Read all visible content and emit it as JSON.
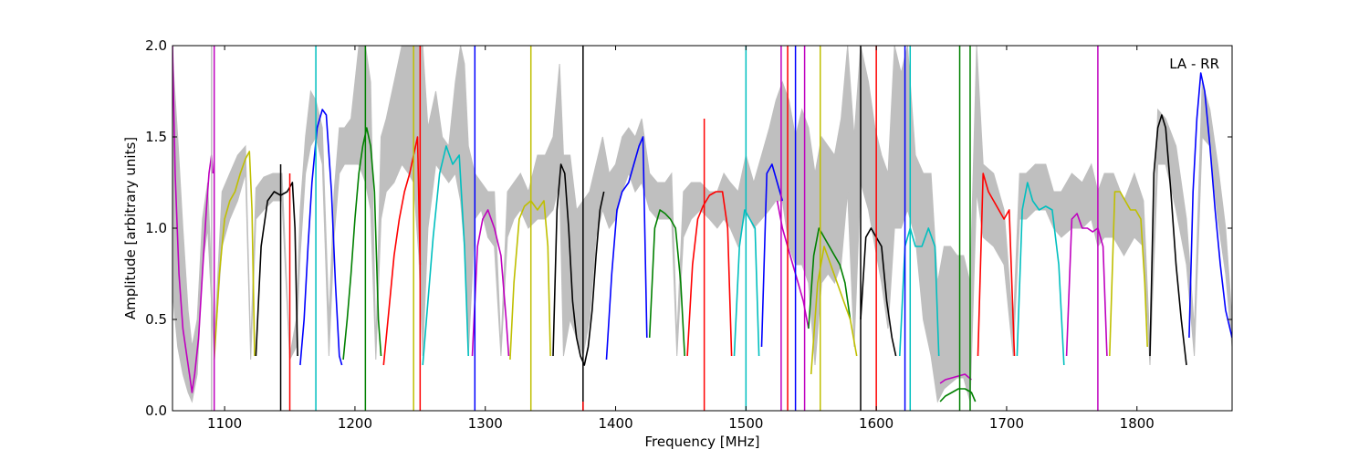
{
  "chart_data": {
    "type": "line",
    "title": "",
    "annotation": "LA - RR",
    "xlabel": "Frequency [MHz]",
    "ylabel": "Amplitude [arbitrary units]",
    "xlim": [
      1060,
      1873
    ],
    "ylim": [
      0.0,
      2.0
    ],
    "xticks": [
      1100,
      1200,
      1300,
      1400,
      1500,
      1600,
      1700,
      1800
    ],
    "xtick_labels": [
      "1100",
      "1200",
      "1300",
      "1400",
      "1500",
      "1600",
      "1700",
      "1800"
    ],
    "yticks": [
      0.0,
      0.5,
      1.0,
      1.5,
      2.0
    ],
    "ytick_labels": [
      "0.0",
      "0.5",
      "1.0",
      "1.5",
      "2.0"
    ],
    "grid": false,
    "legend": "none",
    "envelope_color": "#bfbfbf",
    "envelope": {
      "x": [
        1060,
        1064,
        1068,
        1072,
        1075,
        1079,
        1083,
        1087,
        1092,
        1098,
        1104,
        1110,
        1116,
        1120,
        1124,
        1130,
        1137,
        1144,
        1150,
        1155,
        1158,
        1162,
        1166,
        1170,
        1175,
        1180,
        1184,
        1188,
        1192,
        1197,
        1203,
        1208,
        1212,
        1216,
        1220,
        1224,
        1230,
        1236,
        1241,
        1245,
        1249,
        1252,
        1256,
        1262,
        1267,
        1272,
        1277,
        1281,
        1284,
        1287,
        1292,
        1297,
        1302,
        1307,
        1312,
        1317,
        1322,
        1327,
        1333,
        1340,
        1346,
        1352,
        1357,
        1360,
        1365,
        1370,
        1375,
        1380,
        1385,
        1390,
        1395,
        1400,
        1405,
        1410,
        1415,
        1420,
        1426,
        1432,
        1438,
        1443,
        1447,
        1452,
        1458,
        1465,
        1472,
        1478,
        1483,
        1488,
        1494,
        1500,
        1506,
        1512,
        1518,
        1523,
        1528,
        1533,
        1538,
        1543,
        1548,
        1553,
        1558,
        1563,
        1568,
        1573,
        1578,
        1583,
        1588,
        1594,
        1599,
        1604,
        1609,
        1614,
        1619,
        1624,
        1630,
        1636,
        1642,
        1647,
        1652,
        1657,
        1662,
        1667,
        1672,
        1677,
        1682,
        1690,
        1698,
        1705,
        1710,
        1715,
        1722,
        1730,
        1736,
        1742,
        1750,
        1758,
        1765,
        1770,
        1775,
        1782,
        1790,
        1798,
        1805,
        1810,
        1816,
        1822,
        1830,
        1838,
        1844,
        1850,
        1856,
        1862,
        1868,
        1873
      ],
      "upper": [
        1.95,
        1.5,
        1.0,
        0.55,
        0.35,
        0.5,
        1.05,
        1.25,
        0.35,
        1.2,
        1.3,
        1.4,
        1.45,
        0.35,
        1.22,
        1.28,
        1.3,
        1.3,
        0.3,
        0.5,
        1.1,
        1.5,
        1.75,
        1.7,
        1.55,
        0.5,
        1.2,
        1.55,
        1.55,
        1.6,
        2.0,
        2.0,
        1.8,
        0.35,
        1.5,
        1.6,
        1.8,
        2.0,
        2.0,
        2.0,
        2.0,
        2.0,
        1.55,
        1.75,
        1.5,
        1.45,
        1.8,
        2.0,
        1.9,
        1.45,
        1.3,
        1.25,
        1.2,
        1.2,
        0.35,
        1.2,
        1.25,
        1.3,
        1.2,
        1.4,
        1.4,
        1.5,
        1.9,
        1.4,
        1.4,
        1.1,
        1.15,
        1.2,
        1.35,
        1.5,
        1.3,
        1.35,
        1.5,
        1.55,
        1.5,
        1.6,
        1.3,
        1.25,
        1.25,
        1.3,
        0.4,
        1.2,
        1.25,
        1.25,
        1.2,
        1.2,
        1.3,
        1.25,
        1.2,
        1.4,
        1.25,
        1.4,
        1.55,
        1.7,
        1.8,
        1.7,
        1.5,
        1.65,
        1.55,
        1.3,
        1.5,
        1.45,
        1.4,
        1.6,
        2.0,
        1.5,
        2.0,
        1.8,
        1.55,
        1.4,
        1.3,
        2.0,
        1.85,
        2.0,
        1.4,
        1.3,
        1.3,
        0.7,
        0.9,
        0.9,
        0.85,
        0.85,
        0.7,
        2.0,
        1.35,
        1.3,
        1.1,
        0.45,
        1.3,
        1.3,
        1.35,
        1.35,
        1.2,
        1.2,
        1.3,
        1.25,
        1.35,
        1.2,
        1.3,
        1.3,
        1.15,
        1.3,
        1.15,
        0.35,
        1.65,
        1.6,
        1.45,
        1.05,
        0.45,
        1.8,
        1.65,
        1.35,
        1.0,
        0.5
      ],
      "lower": [
        0.65,
        0.35,
        0.2,
        0.1,
        0.05,
        0.2,
        0.8,
        1.0,
        0.3,
        0.9,
        1.05,
        1.15,
        1.3,
        0.28,
        1.05,
        1.1,
        1.15,
        1.15,
        0.28,
        0.35,
        0.85,
        1.3,
        1.45,
        1.5,
        1.35,
        0.3,
        0.95,
        1.3,
        1.35,
        1.35,
        1.35,
        1.25,
        1.1,
        0.28,
        1.05,
        1.2,
        1.25,
        1.35,
        1.3,
        1.25,
        0.85,
        0.3,
        1.0,
        1.35,
        1.3,
        1.25,
        1.3,
        1.15,
        0.9,
        0.3,
        1.05,
        1.1,
        0.95,
        0.9,
        0.3,
        0.95,
        1.05,
        1.1,
        1.0,
        1.05,
        1.05,
        1.1,
        1.25,
        0.3,
        0.5,
        0.4,
        0.3,
        0.5,
        0.95,
        1.1,
        1.0,
        1.05,
        1.2,
        1.3,
        1.2,
        1.25,
        1.1,
        1.05,
        1.05,
        1.05,
        0.3,
        0.95,
        1.05,
        1.1,
        1.05,
        1.0,
        1.05,
        1.0,
        0.9,
        1.1,
        1.0,
        1.05,
        1.1,
        1.15,
        1.15,
        0.9,
        0.8,
        0.8,
        0.7,
        0.25,
        0.7,
        0.75,
        0.7,
        0.8,
        1.2,
        0.35,
        1.25,
        1.1,
        0.9,
        0.7,
        0.45,
        1.0,
        1.0,
        1.1,
        0.95,
        0.5,
        0.3,
        0.05,
        0.12,
        0.15,
        0.18,
        0.18,
        0.05,
        1.2,
        0.95,
        0.9,
        0.8,
        0.3,
        1.05,
        1.05,
        1.1,
        1.1,
        1.0,
        0.95,
        1.0,
        1.0,
        1.05,
        0.9,
        0.95,
        0.95,
        0.85,
        0.95,
        0.9,
        0.25,
        1.35,
        1.35,
        1.1,
        0.8,
        0.3,
        1.5,
        1.45,
        1.05,
        0.75,
        0.35
      ]
    },
    "series": [
      {
        "color": "#bf00bf",
        "x": [
          1060,
          1062,
          1065,
          1068,
          1071,
          1073,
          1075,
          1077,
          1080,
          1083,
          1086,
          1088,
          1090,
          1091
        ],
        "y": [
          2.0,
          1.3,
          0.75,
          0.45,
          0.3,
          0.2,
          0.1,
          0.2,
          0.4,
          0.75,
          1.1,
          1.3,
          1.4,
          1.3
        ]
      },
      {
        "color": "#bfbf00",
        "x": [
          1092,
          1096,
          1100,
          1104,
          1108,
          1112,
          1116,
          1119,
          1121,
          1123
        ],
        "y": [
          0.28,
          0.75,
          1.05,
          1.15,
          1.2,
          1.3,
          1.38,
          1.42,
          1.1,
          0.3
        ]
      },
      {
        "color": "#000000",
        "x": [
          1124,
          1128,
          1133,
          1138,
          1143,
          1148,
          1152,
          1154,
          1156
        ],
        "y": [
          0.3,
          0.9,
          1.15,
          1.2,
          1.18,
          1.2,
          1.25,
          1.0,
          0.3
        ]
      },
      {
        "color": "#0000ff",
        "x": [
          1158,
          1161,
          1164,
          1167,
          1171,
          1175,
          1178,
          1182,
          1185,
          1188,
          1190
        ],
        "y": [
          0.25,
          0.5,
          0.9,
          1.25,
          1.55,
          1.65,
          1.62,
          1.2,
          0.7,
          0.3,
          0.25
        ]
      },
      {
        "color": "#008000",
        "x": [
          1191,
          1194,
          1197,
          1200,
          1203,
          1206,
          1209,
          1212,
          1215,
          1218,
          1220
        ],
        "y": [
          0.28,
          0.5,
          0.75,
          1.05,
          1.3,
          1.45,
          1.55,
          1.45,
          1.2,
          0.5,
          0.3
        ]
      },
      {
        "color": "#ff0000",
        "x": [
          1222,
          1226,
          1230,
          1234,
          1238,
          1242,
          1245,
          1248,
          1250
        ],
        "y": [
          0.25,
          0.55,
          0.85,
          1.05,
          1.2,
          1.3,
          1.4,
          1.5,
          0.8
        ]
      },
      {
        "color": "#00bfbf",
        "x": [
          1252,
          1256,
          1260,
          1265,
          1270,
          1275,
          1280,
          1284,
          1287
        ],
        "y": [
          0.25,
          0.6,
          0.95,
          1.3,
          1.45,
          1.35,
          1.4,
          0.9,
          0.3
        ]
      },
      {
        "color": "#bf00bf",
        "x": [
          1290,
          1294,
          1298,
          1302,
          1307,
          1312,
          1316,
          1318
        ],
        "y": [
          0.3,
          0.9,
          1.05,
          1.1,
          1.0,
          0.85,
          0.5,
          0.3
        ]
      },
      {
        "color": "#bfbf00",
        "x": [
          1319,
          1322,
          1326,
          1330,
          1335,
          1340,
          1345,
          1348,
          1350
        ],
        "y": [
          0.28,
          0.7,
          1.05,
          1.12,
          1.15,
          1.1,
          1.15,
          0.9,
          0.3
        ]
      },
      {
        "color": "#000000",
        "x": [
          1352,
          1355,
          1358,
          1361,
          1364,
          1367,
          1370,
          1373,
          1376,
          1379,
          1382,
          1385,
          1388,
          1391
        ],
        "y": [
          0.3,
          1.1,
          1.35,
          1.3,
          1.0,
          0.6,
          0.4,
          0.3,
          0.25,
          0.35,
          0.55,
          0.85,
          1.1,
          1.2
        ]
      },
      {
        "color": "#0000ff",
        "x": [
          1393,
          1397,
          1401,
          1405,
          1410,
          1414,
          1418,
          1421,
          1424
        ],
        "y": [
          0.28,
          0.75,
          1.1,
          1.2,
          1.25,
          1.35,
          1.45,
          1.5,
          0.4
        ]
      },
      {
        "color": "#008000",
        "x": [
          1426,
          1430,
          1434,
          1438,
          1442,
          1446,
          1450,
          1453
        ],
        "y": [
          0.4,
          1.0,
          1.1,
          1.08,
          1.05,
          1.0,
          0.7,
          0.3
        ]
      },
      {
        "color": "#ff0000",
        "x": [
          1455,
          1459,
          1463,
          1467,
          1472,
          1477,
          1482,
          1486,
          1489
        ],
        "y": [
          0.3,
          0.8,
          1.05,
          1.12,
          1.18,
          1.2,
          1.2,
          1.0,
          0.3
        ]
      },
      {
        "color": "#00bfbf",
        "x": [
          1491,
          1495,
          1499,
          1503,
          1507,
          1510
        ],
        "y": [
          0.3,
          0.9,
          1.1,
          1.05,
          1.0,
          0.3
        ]
      },
      {
        "color": "#0000ff",
        "x": [
          1512,
          1516,
          1520,
          1524,
          1528
        ],
        "y": [
          0.35,
          1.3,
          1.35,
          1.25,
          1.15
        ]
      },
      {
        "color": "#bf00bf",
        "x": [
          1524,
          1528,
          1532,
          1536,
          1540,
          1544,
          1548
        ],
        "y": [
          1.15,
          1.0,
          0.9,
          0.8,
          0.7,
          0.6,
          0.45
        ]
      },
      {
        "color": "#008000",
        "x": [
          1548,
          1552,
          1556,
          1560,
          1564,
          1568,
          1572,
          1576,
          1580
        ],
        "y": [
          0.45,
          0.85,
          1.0,
          0.95,
          0.9,
          0.85,
          0.8,
          0.7,
          0.5
        ]
      },
      {
        "color": "#bfbf00",
        "x": [
          1550,
          1555,
          1560,
          1565,
          1570,
          1575,
          1580,
          1585
        ],
        "y": [
          0.2,
          0.7,
          0.9,
          0.8,
          0.7,
          0.6,
          0.5,
          0.3
        ]
      },
      {
        "color": "#000000",
        "x": [
          1588,
          1592,
          1596,
          1600,
          1604,
          1608,
          1612,
          1615
        ],
        "y": [
          0.5,
          0.95,
          1.0,
          0.95,
          0.9,
          0.6,
          0.4,
          0.3
        ]
      },
      {
        "color": "#00bfbf",
        "x": [
          1618,
          1622,
          1626,
          1630,
          1635,
          1640,
          1645,
          1648
        ],
        "y": [
          0.3,
          0.9,
          1.0,
          0.9,
          0.9,
          1.0,
          0.9,
          0.3
        ]
      },
      {
        "color": "#bf00bf",
        "x": [
          1649,
          1653,
          1658,
          1663,
          1668,
          1673
        ],
        "y": [
          0.15,
          0.17,
          0.18,
          0.19,
          0.2,
          0.17
        ]
      },
      {
        "color": "#008000",
        "x": [
          1649,
          1653,
          1658,
          1663,
          1668,
          1673,
          1676
        ],
        "y": [
          0.05,
          0.08,
          0.1,
          0.12,
          0.12,
          0.1,
          0.05
        ]
      },
      {
        "color": "#ff0000",
        "x": [
          1678,
          1682,
          1686,
          1690,
          1694,
          1698,
          1702,
          1706
        ],
        "y": [
          0.3,
          1.3,
          1.2,
          1.15,
          1.1,
          1.05,
          1.1,
          0.3
        ]
      },
      {
        "color": "#00bfbf",
        "x": [
          1708,
          1712,
          1716,
          1720,
          1725,
          1730,
          1735,
          1740,
          1744
        ],
        "y": [
          0.3,
          1.1,
          1.25,
          1.15,
          1.1,
          1.12,
          1.1,
          0.8,
          0.25
        ]
      },
      {
        "color": "#bf00bf",
        "x": [
          1746,
          1750,
          1754,
          1758,
          1762,
          1766,
          1770,
          1774,
          1777
        ],
        "y": [
          0.3,
          1.05,
          1.08,
          1.0,
          1.0,
          0.98,
          1.0,
          0.9,
          0.3
        ]
      },
      {
        "color": "#bfbf00",
        "x": [
          1779,
          1783,
          1787,
          1791,
          1795,
          1799,
          1803,
          1806,
          1808
        ],
        "y": [
          0.3,
          1.2,
          1.2,
          1.15,
          1.1,
          1.1,
          1.05,
          0.7,
          0.35
        ]
      },
      {
        "color": "#000000",
        "x": [
          1810,
          1813,
          1816,
          1819,
          1822,
          1826,
          1830,
          1834,
          1838
        ],
        "y": [
          0.3,
          1.3,
          1.55,
          1.62,
          1.55,
          1.2,
          0.8,
          0.5,
          0.25
        ]
      },
      {
        "color": "#0000ff",
        "x": [
          1840,
          1843,
          1846,
          1849,
          1852,
          1856,
          1860,
          1864,
          1868,
          1873
        ],
        "y": [
          0.4,
          1.2,
          1.6,
          1.85,
          1.75,
          1.45,
          1.1,
          0.8,
          0.55,
          0.4
        ]
      }
    ],
    "spikes": [
      {
        "color": "#bfbfbf",
        "x": 1090,
        "top": 2.0
      },
      {
        "color": "#bf00bf",
        "x": 1092,
        "top": 2.0
      },
      {
        "color": "#000000",
        "x": 1143,
        "top": 1.35
      },
      {
        "color": "#ff0000",
        "x": 1150,
        "top": 1.3
      },
      {
        "color": "#00bfbf",
        "x": 1170,
        "top": 2.0
      },
      {
        "color": "#008000",
        "x": 1208,
        "top": 2.0
      },
      {
        "color": "#bfbf00",
        "x": 1245,
        "top": 2.0
      },
      {
        "color": "#ff0000",
        "x": 1250,
        "top": 2.0
      },
      {
        "color": "#0000ff",
        "x": 1292,
        "top": 2.0
      },
      {
        "color": "#bfbf00",
        "x": 1335,
        "top": 2.0
      },
      {
        "color": "#000000",
        "x": 1375,
        "top": 2.0
      },
      {
        "color": "#ff0000",
        "x": 1375,
        "top": 0.05
      },
      {
        "color": "#ff0000",
        "x": 1468,
        "top": 1.6
      },
      {
        "color": "#00bfbf",
        "x": 1500,
        "top": 2.0
      },
      {
        "color": "#bf00bf",
        "x": 1527,
        "top": 2.0
      },
      {
        "color": "#ff0000",
        "x": 1532,
        "top": 2.0
      },
      {
        "color": "#0000ff",
        "x": 1538,
        "top": 2.0
      },
      {
        "color": "#bf00bf",
        "x": 1545,
        "top": 2.0
      },
      {
        "color": "#bfbf00",
        "x": 1557,
        "top": 2.0
      },
      {
        "color": "#000000",
        "x": 1588,
        "top": 2.0
      },
      {
        "color": "#ff0000",
        "x": 1600,
        "top": 2.0
      },
      {
        "color": "#0000ff",
        "x": 1622,
        "top": 2.0
      },
      {
        "color": "#00bfbf",
        "x": 1626,
        "top": 2.0
      },
      {
        "color": "#008000",
        "x": 1664,
        "top": 2.0
      },
      {
        "color": "#008000",
        "x": 1672,
        "top": 2.0
      },
      {
        "color": "#bf00bf",
        "x": 1770,
        "top": 2.0
      }
    ]
  }
}
